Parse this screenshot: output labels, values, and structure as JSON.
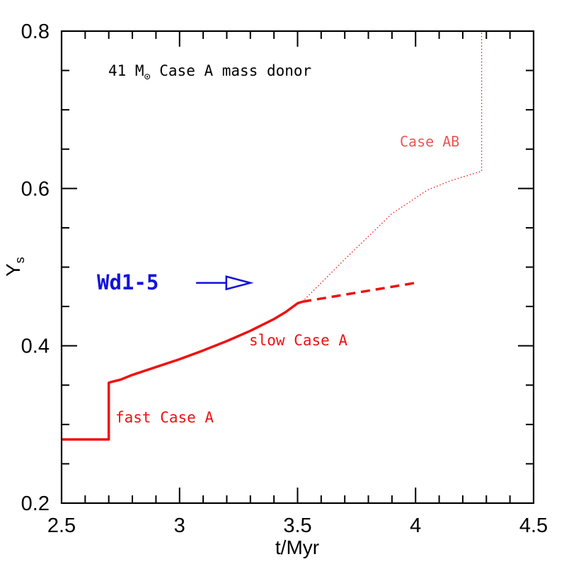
{
  "chart_data": {
    "type": "line",
    "title": "",
    "xlabel": "t/Myr",
    "ylabel": "Y",
    "ylabel_subscript": "s",
    "xlim": [
      2.5,
      4.5
    ],
    "ylim": [
      0.2,
      0.8
    ],
    "x_ticks": [
      2.5,
      3,
      3.5,
      4,
      4.5
    ],
    "x_tick_labels": [
      "2.5",
      "3",
      "3.5",
      "4",
      "4.5"
    ],
    "y_ticks": [
      0.2,
      0.4,
      0.6,
      0.8
    ],
    "y_tick_labels": [
      "0.2",
      "0.4",
      "0.6",
      "0.8"
    ],
    "x_minor_step": 0.1,
    "y_minor_step": 0.05,
    "grid": false,
    "legend": "none",
    "series": [
      {
        "style": "solid",
        "color": "#ee1111",
        "x": [
          2.5,
          2.7,
          2.7,
          2.71,
          2.75,
          2.8,
          2.9,
          3.0,
          3.1,
          3.2,
          3.3,
          3.4,
          3.45,
          3.5,
          3.52
        ],
        "y": [
          0.281,
          0.281,
          0.353,
          0.354,
          0.357,
          0.363,
          0.373,
          0.383,
          0.394,
          0.406,
          0.419,
          0.434,
          0.443,
          0.454,
          0.456
        ]
      },
      {
        "style": "dashed",
        "color": "#ee1111",
        "x": [
          3.52,
          4.0
        ],
        "y": [
          0.456,
          0.48
        ]
      },
      {
        "style": "dotted",
        "color": "#ee1111",
        "x": [
          3.52,
          3.7,
          3.9,
          4.05,
          4.15,
          4.28,
          4.28
        ],
        "y": [
          0.456,
          0.51,
          0.568,
          0.598,
          0.61,
          0.622,
          0.8
        ]
      }
    ],
    "annotations": {
      "donor_prefix": "41 M",
      "donor_suffix": "Case A mass donor",
      "case_ab": "Case AB",
      "wd1": "Wd1-5",
      "slow": "slow Case A",
      "fast": "fast Case A",
      "arrow": {
        "from": [
          3.07,
          0.48
        ],
        "to": [
          3.3,
          0.48
        ]
      }
    },
    "colors": {
      "axis": "#000000",
      "case_lines": "#ee1111",
      "case_ab_label": "#ee5555",
      "wd1": "#1111dd"
    }
  }
}
